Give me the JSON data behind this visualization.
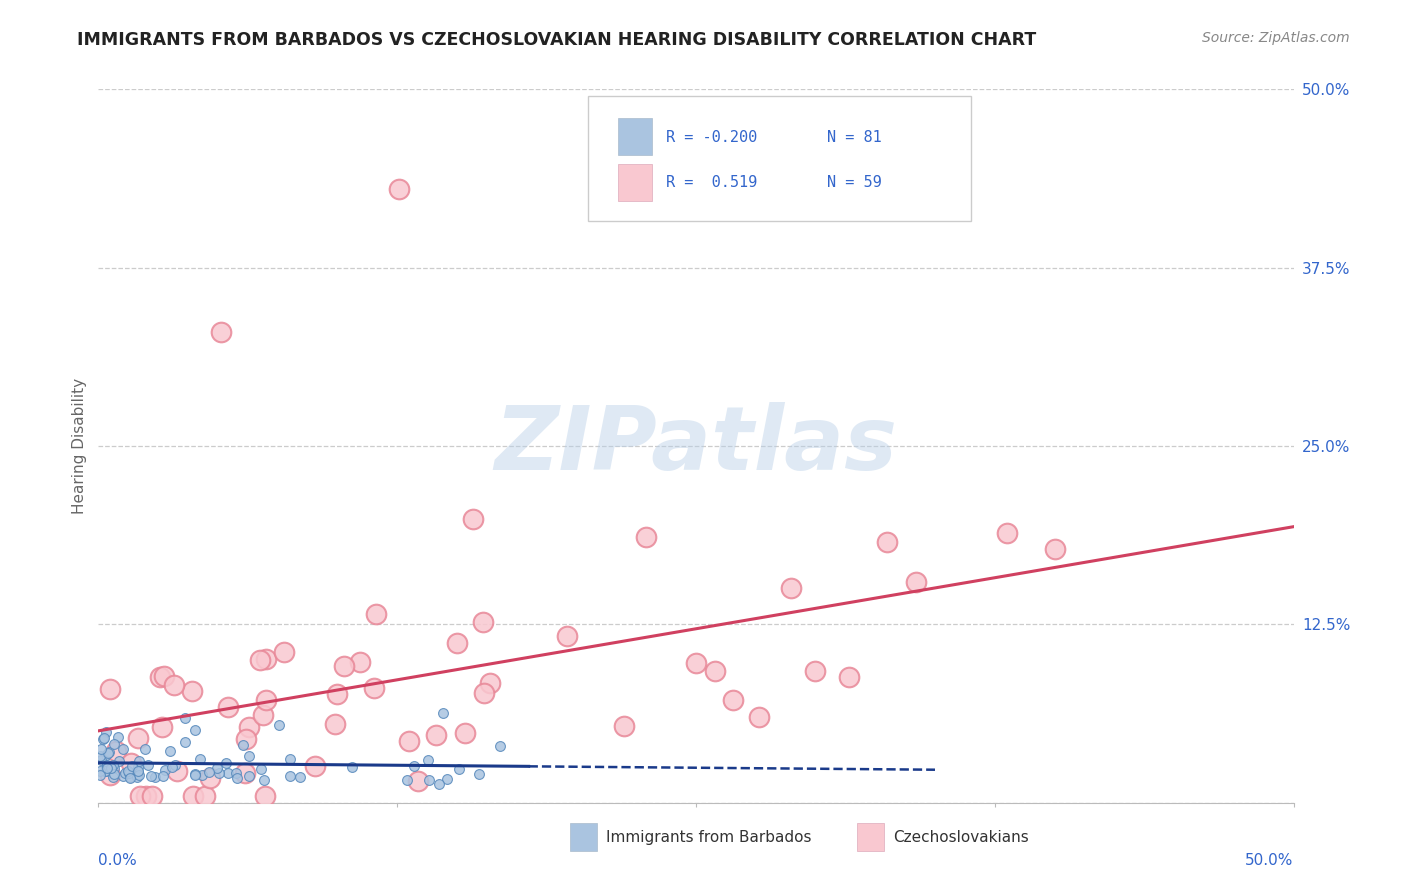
{
  "title": "IMMIGRANTS FROM BARBADOS VS CZECHOSLOVAKIAN HEARING DISABILITY CORRELATION CHART",
  "source": "Source: ZipAtlas.com",
  "ylabel": "Hearing Disability",
  "xlim": [
    0.0,
    0.5
  ],
  "ylim": [
    0.0,
    0.5
  ],
  "xtick_left_label": "0.0%",
  "xtick_right_label": "50.0%",
  "ytick_labels": [
    "12.5%",
    "25.0%",
    "37.5%",
    "50.0%"
  ],
  "ytick_values": [
    0.125,
    0.25,
    0.375,
    0.5
  ],
  "series1_color": "#aac4e0",
  "series1_edge": "#5588bb",
  "series2_color": "#f9c8d0",
  "series2_edge": "#e88898",
  "trend1_color": "#1a3a8a",
  "trend2_color": "#d04060",
  "legend_r1": "-0.200",
  "legend_n1": "81",
  "legend_r2": "0.519",
  "legend_n2": "59",
  "watermark_text": "ZIPatlas",
  "background_color": "#ffffff",
  "grid_color": "#cccccc",
  "title_color": "#222222",
  "source_color": "#888888",
  "axis_label_color": "#3366cc",
  "legend_text_color": "#3366cc",
  "tick_label_color": "#3366cc",
  "bottom_label_color": "#333333"
}
